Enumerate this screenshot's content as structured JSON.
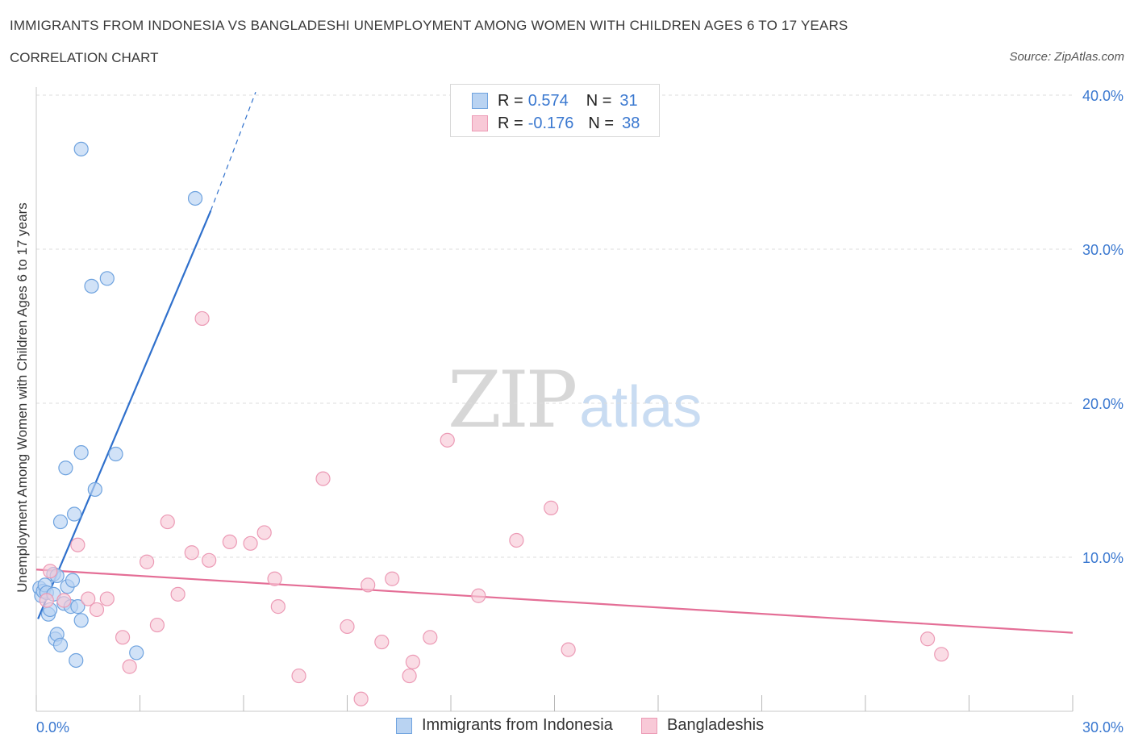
{
  "title": "IMMIGRANTS FROM INDONESIA VS BANGLADESHI UNEMPLOYMENT AMONG WOMEN WITH CHILDREN AGES 6 TO 17 YEARS",
  "subtitle": "CORRELATION CHART",
  "source": "Source: ZipAtlas.com",
  "watermark": {
    "zip": "ZIP",
    "atlas": "atlas"
  },
  "legend": {
    "r_label": "R =",
    "n_label": "N =",
    "series": [
      {
        "r": "0.574",
        "n": "31"
      },
      {
        "r": "-0.176",
        "n": "38"
      }
    ]
  },
  "chart_data": {
    "type": "scatter",
    "title": "IMMIGRANTS FROM INDONESIA VS BANGLADESHI UNEMPLOYMENT AMONG WOMEN WITH CHILDREN AGES 6 TO 17 YEARS",
    "xlabel": "",
    "ylabel": "Unemployment Among Women with Children Ages 6 to 17 years",
    "xlim": [
      0,
      30
    ],
    "ylim": [
      0,
      40
    ],
    "x_tick_labels": [
      "0.0%",
      "30.0%"
    ],
    "y_tick_labels": [
      "10.0%",
      "20.0%",
      "30.0%",
      "40.0%"
    ],
    "y_ticks": [
      10,
      20,
      30,
      40
    ],
    "grid": true,
    "legend_position": "top-center",
    "series": [
      {
        "name": "Immigrants from Indonesia",
        "color": "#6fa3df",
        "fill": "#b9d3f2",
        "line_color": "#2f70cc",
        "trend": {
          "x0": 0.05,
          "y0": 6.0,
          "x1": 5.05,
          "y1": 32.5,
          "x_dash_end": 6.35,
          "y_dash_end": 40.2
        },
        "points": [
          [
            0.1,
            8.0
          ],
          [
            0.15,
            7.5
          ],
          [
            0.2,
            7.8
          ],
          [
            0.25,
            8.2
          ],
          [
            0.3,
            7.7
          ],
          [
            0.35,
            6.3
          ],
          [
            0.4,
            6.6
          ],
          [
            0.5,
            7.6
          ],
          [
            0.5,
            8.9
          ],
          [
            0.55,
            4.7
          ],
          [
            0.6,
            5.0
          ],
          [
            0.7,
            4.3
          ],
          [
            0.7,
            12.3
          ],
          [
            0.8,
            7.0
          ],
          [
            0.85,
            15.8
          ],
          [
            0.9,
            8.1
          ],
          [
            1.0,
            6.8
          ],
          [
            1.05,
            8.5
          ],
          [
            1.1,
            12.8
          ],
          [
            1.15,
            3.3
          ],
          [
            1.2,
            6.8
          ],
          [
            1.3,
            5.9
          ],
          [
            1.3,
            36.5
          ],
          [
            1.6,
            27.6
          ],
          [
            1.7,
            14.4
          ],
          [
            2.05,
            28.1
          ],
          [
            2.3,
            16.7
          ],
          [
            2.9,
            3.8
          ],
          [
            4.6,
            33.3
          ],
          [
            1.3,
            16.8
          ],
          [
            0.6,
            8.8
          ]
        ]
      },
      {
        "name": "Bangladeshis",
        "color": "#ec9ab5",
        "fill": "#f8c9d7",
        "line_color": "#e46e96",
        "trend": {
          "x0": 0.0,
          "y0": 9.2,
          "x1": 30.0,
          "y1": 5.1
        },
        "points": [
          [
            0.3,
            7.2
          ],
          [
            0.4,
            9.1
          ],
          [
            0.8,
            7.2
          ],
          [
            1.2,
            10.8
          ],
          [
            1.5,
            7.3
          ],
          [
            1.75,
            6.6
          ],
          [
            2.05,
            7.3
          ],
          [
            2.5,
            4.8
          ],
          [
            2.7,
            2.9
          ],
          [
            3.2,
            9.7
          ],
          [
            3.5,
            5.6
          ],
          [
            3.8,
            12.3
          ],
          [
            4.1,
            7.6
          ],
          [
            4.5,
            10.3
          ],
          [
            4.8,
            25.5
          ],
          [
            5.0,
            9.8
          ],
          [
            5.6,
            11.0
          ],
          [
            6.2,
            10.9
          ],
          [
            6.6,
            11.6
          ],
          [
            6.9,
            8.6
          ],
          [
            7.0,
            6.8
          ],
          [
            7.6,
            2.3
          ],
          [
            8.3,
            15.1
          ],
          [
            9.0,
            5.5
          ],
          [
            9.4,
            0.8
          ],
          [
            9.6,
            8.2
          ],
          [
            10.0,
            4.5
          ],
          [
            10.3,
            8.6
          ],
          [
            10.8,
            2.3
          ],
          [
            10.9,
            3.2
          ],
          [
            11.4,
            4.8
          ],
          [
            11.9,
            17.6
          ],
          [
            12.8,
            7.5
          ],
          [
            13.9,
            11.1
          ],
          [
            14.9,
            13.2
          ],
          [
            15.4,
            4.0
          ],
          [
            25.8,
            4.7
          ],
          [
            26.2,
            3.7
          ]
        ]
      }
    ]
  }
}
